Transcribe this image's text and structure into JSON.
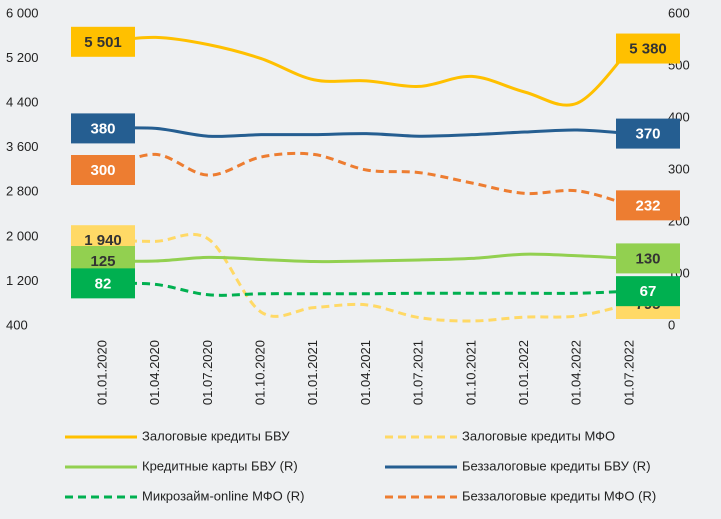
{
  "chart_data": {
    "type": "line",
    "categories": [
      "01.01.2020",
      "01.04.2020",
      "01.07.2020",
      "01.10.2020",
      "01.01.2021",
      "01.04.2021",
      "01.07.2021",
      "01.10.2021",
      "01.01.2022",
      "01.04.2022",
      "01.07.2022"
    ],
    "ylim": [
      400,
      6000
    ],
    "yticks": [
      400,
      {
        "value": 1200,
        "label": "1 200"
      },
      {
        "value": 2000,
        "label": "2 000"
      },
      {
        "value": 2800,
        "label": "2 800"
      },
      {
        "value": 3600,
        "label": "3 600"
      },
      {
        "value": 4400,
        "label": "4 400"
      },
      {
        "value": 5200,
        "label": "5 200"
      },
      {
        "value": 6000,
        "label": "6 000"
      }
    ],
    "y2lim": [
      0,
      600
    ],
    "y2ticks": [
      0,
      100,
      200,
      300,
      400,
      500,
      600
    ],
    "series": [
      {
        "name": "Залоговые кредиты БВУ",
        "color": "#ffc000",
        "dash": false,
        "values": [
          5501,
          5580,
          5450,
          5200,
          4820,
          4800,
          4700,
          4880,
          4600,
          4400,
          5380
        ],
        "value_labels": [
          "5 501",
          null,
          null,
          null,
          null,
          null,
          null,
          null,
          null,
          null,
          "5 380"
        ]
      },
      {
        "name": "Залоговые кредиты МФО",
        "color": "#ffd966",
        "dash": true,
        "values": [
          1940,
          1920,
          1960,
          650,
          730,
          780,
          550,
          490,
          560,
          580,
          795
        ],
        "value_labels": [
          "1 940",
          null,
          null,
          null,
          null,
          null,
          null,
          null,
          null,
          null,
          "795"
        ]
      },
      {
        "name": "Кредитные карты БВУ (R)",
        "color": "#92d050",
        "dash": false,
        "axis": "y2",
        "values": [
          125,
          125,
          132,
          128,
          124,
          125,
          127,
          130,
          138,
          135,
          130
        ],
        "value_labels": [
          "125",
          null,
          null,
          null,
          null,
          null,
          null,
          null,
          null,
          null,
          "130"
        ]
      },
      {
        "name": "Беззалоговые кредиты БВУ (R)",
        "color": "#255e91",
        "dash": false,
        "axis": "y2",
        "values": [
          380,
          380,
          365,
          368,
          368,
          370,
          365,
          368,
          373,
          377,
          370
        ],
        "value_labels": [
          "380",
          null,
          null,
          null,
          null,
          null,
          null,
          null,
          null,
          null,
          "370"
        ]
      },
      {
        "name": "Микрозайм-online МФО (R)",
        "color": "#00b050",
        "dash": true,
        "axis": "y2",
        "values": [
          82,
          80,
          60,
          62,
          62,
          62,
          63,
          63,
          63,
          63,
          67
        ],
        "value_labels": [
          "82",
          null,
          null,
          null,
          null,
          null,
          null,
          null,
          null,
          null,
          "67"
        ]
      },
      {
        "name": "Беззалоговые кредиты МФО (R)",
        "color": "#ed7d31",
        "dash": true,
        "axis": "y2",
        "values": [
          300,
          330,
          290,
          325,
          330,
          300,
          295,
          275,
          255,
          260,
          232
        ],
        "value_labels": [
          "300",
          null,
          null,
          null,
          null,
          null,
          null,
          null,
          null,
          null,
          "232"
        ]
      }
    ]
  }
}
